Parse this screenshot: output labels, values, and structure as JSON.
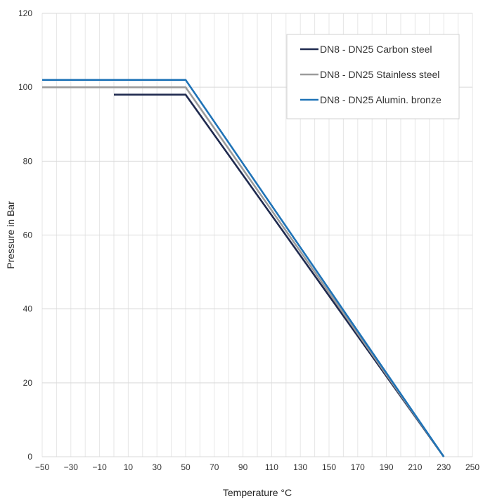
{
  "chart_data": {
    "type": "line",
    "title": "",
    "xlabel": "Temperature °C",
    "ylabel": "Pressure in Bar",
    "xlim": [
      -50,
      250
    ],
    "ylim": [
      0,
      120
    ],
    "x_ticks": [
      -50,
      -30,
      -10,
      10,
      30,
      50,
      70,
      90,
      110,
      130,
      150,
      170,
      190,
      210,
      230,
      250
    ],
    "y_ticks": [
      0,
      20,
      40,
      60,
      80,
      100,
      120
    ],
    "minor_x_step": 10,
    "grid": true,
    "legend_position": "top-right",
    "series": [
      {
        "name": "DN8 - DN25 Carbon steel",
        "color": "#1f2a4f",
        "x": [
          0,
          50,
          230
        ],
        "y": [
          98,
          98,
          0
        ]
      },
      {
        "name": "DN8 - DN25 Stainless steel",
        "color": "#9b9b9b",
        "x": [
          -50,
          50,
          230
        ],
        "y": [
          100,
          100,
          0
        ]
      },
      {
        "name": "DN8 - DN25 Alumin. bronze",
        "color": "#1f73b7",
        "x": [
          -50,
          50,
          230
        ],
        "y": [
          102,
          102,
          0
        ]
      }
    ]
  }
}
